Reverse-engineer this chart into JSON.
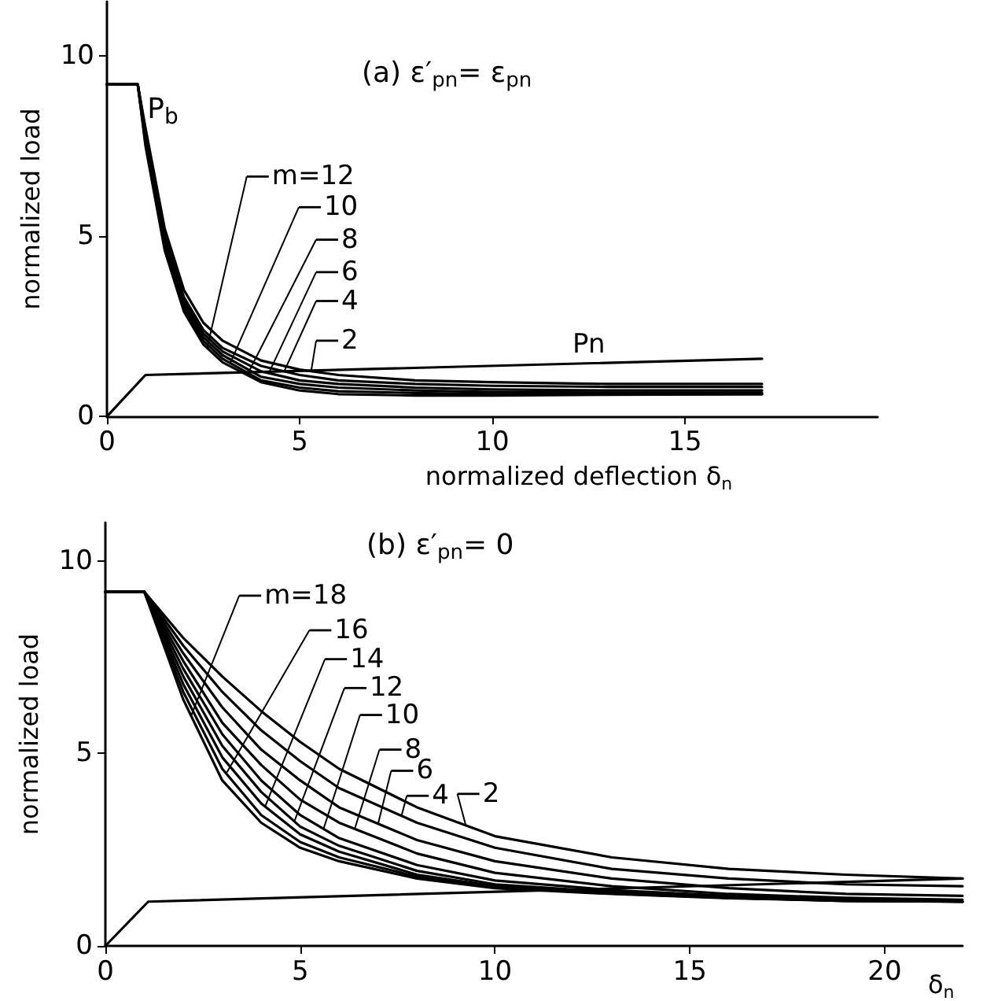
{
  "chart_data": [
    {
      "type": "line",
      "title": "(a) ε′$_{pn}$= ε$_{pn}$",
      "xlabel": "normalized deflection δ$_{n}$",
      "ylabel": "normalized load",
      "xlim": [
        0,
        20
      ],
      "xticks": [
        0,
        5,
        10,
        15
      ],
      "ylim": [
        0,
        11.5
      ],
      "yticks": [
        0,
        5,
        10
      ],
      "marker": "none",
      "line_style": "solid",
      "legend": "bottom left",
      "annotations": [
        {
          "text": "P$_{b}$",
          "x": 0.8,
          "y": 9.2
        }
      ],
      "series": [
        {
          "name": "m=12",
          "color": "#000000",
          "x": [
            0,
            0.8,
            1,
            1.5,
            2,
            2.5,
            3,
            4,
            5,
            6,
            8,
            10,
            13,
            17
          ],
          "values": [
            9.2,
            9.2,
            7.5,
            4.6,
            2.9,
            2.0,
            1.5,
            0.95,
            0.72,
            0.62,
            0.58,
            0.58,
            0.6,
            0.62
          ]
        },
        {
          "name": "10",
          "color": "#000000",
          "x": [
            0,
            0.8,
            1,
            1.5,
            2,
            2.5,
            3,
            4,
            5,
            6,
            8,
            10,
            13,
            17
          ],
          "values": [
            9.2,
            9.2,
            7.6,
            4.7,
            3.0,
            2.1,
            1.6,
            1.0,
            0.8,
            0.7,
            0.65,
            0.62,
            0.62,
            0.62
          ]
        },
        {
          "name": "8",
          "color": "#000000",
          "x": [
            0,
            0.8,
            1,
            1.5,
            2,
            2.5,
            3,
            4,
            5,
            6,
            8,
            10,
            13,
            17
          ],
          "values": [
            9.2,
            9.2,
            7.7,
            4.8,
            3.1,
            2.2,
            1.7,
            1.1,
            0.9,
            0.8,
            0.72,
            0.68,
            0.66,
            0.66
          ]
        },
        {
          "name": "6",
          "color": "#000000",
          "x": [
            0,
            0.8,
            1,
            1.5,
            2,
            2.5,
            3,
            4,
            5,
            6,
            8,
            10,
            13,
            17
          ],
          "values": [
            9.2,
            9.2,
            7.8,
            4.9,
            3.2,
            2.3,
            1.8,
            1.25,
            1.0,
            0.9,
            0.8,
            0.75,
            0.72,
            0.72
          ]
        },
        {
          "name": "4",
          "color": "#000000",
          "x": [
            0,
            0.8,
            1,
            1.5,
            2,
            2.5,
            3,
            4,
            5,
            6,
            8,
            10,
            13,
            17
          ],
          "values": [
            9.2,
            9.2,
            7.9,
            5.0,
            3.3,
            2.4,
            1.9,
            1.4,
            1.15,
            1.0,
            0.9,
            0.85,
            0.82,
            0.82
          ]
        },
        {
          "name": "2",
          "color": "#000000",
          "x": [
            0,
            0.8,
            1,
            1.5,
            2,
            2.5,
            3,
            4,
            5,
            6,
            8,
            10,
            13,
            17
          ],
          "values": [
            9.2,
            9.2,
            8.0,
            5.2,
            3.5,
            2.6,
            2.1,
            1.55,
            1.3,
            1.15,
            1.0,
            0.95,
            0.9,
            0.9
          ]
        },
        {
          "name": "Pn",
          "color": "#000000",
          "x": [
            0,
            1,
            17
          ],
          "values": [
            0,
            1.15,
            1.6
          ]
        }
      ]
    },
    {
      "type": "line",
      "title": "(b) ε′$_{pn}$= 0",
      "xlabel": "δ$_{n}$",
      "ylabel": "normalized load",
      "xlim": [
        0,
        22
      ],
      "xticks": [
        0,
        5,
        10,
        15,
        20
      ],
      "ylim": [
        0,
        11
      ],
      "yticks": [
        0,
        5,
        10
      ],
      "marker": "none",
      "line_style": "solid",
      "legend": "top left",
      "series": [
        {
          "name": "m=18",
          "color": "#000000",
          "x": [
            0,
            1,
            2,
            3,
            4,
            5,
            6,
            8,
            10,
            13,
            16,
            19,
            22
          ],
          "values": [
            9.2,
            9.2,
            6.4,
            4.3,
            3.2,
            2.55,
            2.2,
            1.75,
            1.5,
            1.35,
            1.24,
            1.17,
            1.15
          ]
        },
        {
          "name": "16",
          "color": "#000000",
          "x": [
            0,
            1,
            2,
            3,
            4,
            5,
            6,
            8,
            10,
            13,
            16,
            19,
            22
          ],
          "values": [
            9.2,
            9.2,
            6.6,
            4.6,
            3.4,
            2.7,
            2.3,
            1.8,
            1.52,
            1.36,
            1.25,
            1.17,
            1.15
          ]
        },
        {
          "name": "14",
          "color": "#000000",
          "x": [
            0,
            1,
            2,
            3,
            4,
            5,
            6,
            8,
            10,
            13,
            16,
            19,
            22
          ],
          "values": [
            9.2,
            9.2,
            6.8,
            4.9,
            3.7,
            2.9,
            2.45,
            1.85,
            1.55,
            1.38,
            1.25,
            1.18,
            1.15
          ]
        },
        {
          "name": "12",
          "color": "#000000",
          "x": [
            0,
            1,
            2,
            3,
            4,
            5,
            6,
            8,
            10,
            13,
            16,
            19,
            22
          ],
          "values": [
            9.2,
            9.2,
            7.0,
            5.2,
            4.0,
            3.1,
            2.6,
            1.95,
            1.6,
            1.4,
            1.25,
            1.18,
            1.15
          ]
        },
        {
          "name": "10",
          "color": "#000000",
          "x": [
            0,
            1,
            2,
            3,
            4,
            5,
            6,
            8,
            10,
            13,
            16,
            19,
            22
          ],
          "values": [
            9.2,
            9.2,
            7.2,
            5.5,
            4.3,
            3.4,
            2.8,
            2.1,
            1.7,
            1.45,
            1.3,
            1.2,
            1.15
          ]
        },
        {
          "name": "8",
          "color": "#000000",
          "x": [
            0,
            1,
            2,
            3,
            4,
            5,
            6,
            8,
            10,
            13,
            16,
            19,
            22
          ],
          "values": [
            9.2,
            9.2,
            7.4,
            5.8,
            4.7,
            3.8,
            3.2,
            2.4,
            1.9,
            1.55,
            1.35,
            1.25,
            1.2
          ]
        },
        {
          "name": "6",
          "color": "#000000",
          "x": [
            0,
            1,
            2,
            3,
            4,
            5,
            6,
            8,
            10,
            13,
            16,
            19,
            22
          ],
          "values": [
            9.2,
            9.2,
            7.6,
            6.2,
            5.1,
            4.3,
            3.6,
            2.75,
            2.2,
            1.75,
            1.5,
            1.35,
            1.3
          ]
        },
        {
          "name": "4",
          "color": "#000000",
          "x": [
            0,
            1,
            2,
            3,
            4,
            5,
            6,
            8,
            10,
            13,
            16,
            19,
            22
          ],
          "values": [
            9.2,
            9.2,
            7.8,
            6.6,
            5.6,
            4.8,
            4.1,
            3.2,
            2.55,
            2.0,
            1.75,
            1.6,
            1.55
          ]
        },
        {
          "name": "2",
          "color": "#000000",
          "x": [
            0,
            1,
            2,
            3,
            4,
            5,
            6,
            8,
            10,
            13,
            16,
            19,
            22
          ],
          "values": [
            9.2,
            9.2,
            8.0,
            7.0,
            6.1,
            5.3,
            4.6,
            3.6,
            2.85,
            2.3,
            2.0,
            1.85,
            1.75
          ]
        },
        {
          "color": "#000000",
          "x": [
            0,
            1.1,
            22
          ],
          "values": [
            0,
            1.15,
            1.75
          ]
        }
      ]
    }
  ]
}
